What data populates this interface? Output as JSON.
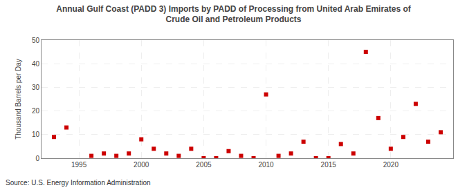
{
  "chart_data": {
    "type": "scatter",
    "title": "Annual Gulf Coast (PADD 3) Imports by PADD of Processing from United Arab Emirates of\nCrude Oil and Petroleum Products",
    "ylabel": "Thousand Barrels per Day",
    "annotations": [
      "Source: U.S. Energy Information Administration"
    ],
    "x": [
      1993,
      1994,
      1996,
      1997,
      1998,
      1999,
      2000,
      2001,
      2002,
      2003,
      2004,
      2005,
      2006,
      2007,
      2008,
      2009,
      2010,
      2011,
      2012,
      2013,
      2014,
      2015,
      2016,
      2017,
      2018,
      2019,
      2020,
      2021,
      2022,
      2023,
      2024
    ],
    "values": [
      9,
      13,
      1,
      2,
      1,
      2,
      8,
      4,
      2,
      1,
      4,
      0,
      0,
      3,
      1,
      0,
      27,
      1,
      2,
      7,
      0,
      0,
      6,
      2,
      45,
      17,
      4,
      9,
      23,
      7,
      11
    ],
    "color": "#cc0000",
    "marker": "square",
    "xlim": [
      1992,
      2025
    ],
    "xticks": [
      1995,
      2000,
      2005,
      2010,
      2015,
      2020
    ],
    "ylim": [
      0,
      50
    ],
    "yticks": [
      0,
      10,
      20,
      30,
      40,
      50
    ],
    "grid": true
  }
}
